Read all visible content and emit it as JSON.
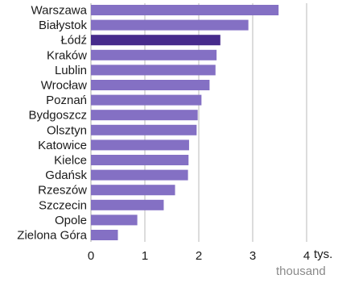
{
  "chart_data": {
    "type": "bar",
    "orientation": "horizontal",
    "categories": [
      "Warszawa",
      "Białystok",
      "Łódź",
      "Kraków",
      "Lublin",
      "Wrocław",
      "Poznań",
      "Bydgoszcz",
      "Olsztyn",
      "Katowice",
      "Kielce",
      "Gdańsk",
      "Rzeszów",
      "Szczecin",
      "Opole",
      "Zielona Góra"
    ],
    "values": [
      3.48,
      2.92,
      2.4,
      2.33,
      2.31,
      2.2,
      2.05,
      1.98,
      1.96,
      1.82,
      1.81,
      1.8,
      1.56,
      1.35,
      0.86,
      0.5
    ],
    "highlight": "Łódź",
    "xlim": [
      0,
      4
    ],
    "xticks": [
      "0",
      "1",
      "2",
      "3",
      "4"
    ],
    "x_unit": "tys.",
    "x_unit_sub": "thousand",
    "grid": "vertical",
    "colors": {
      "bar": "#8470c4",
      "highlight": "#472b8c",
      "grid": "#b8b8b8",
      "text": "#1a1a1a",
      "subtext": "#8a8a8a"
    }
  }
}
